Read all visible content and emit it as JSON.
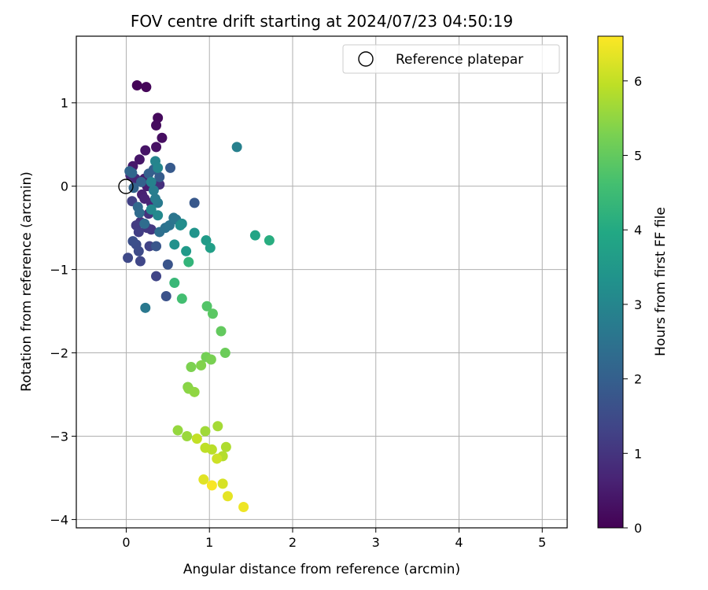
{
  "chart_data": {
    "type": "scatter",
    "title": "FOV centre drift starting at 2024/07/23 04:50:19",
    "xlabel": "Angular distance from reference (arcmin)",
    "ylabel": "Rotation from reference (arcmin)",
    "xlim": [
      -0.6,
      5.3
    ],
    "ylim": [
      -4.1,
      1.8
    ],
    "xticks": [
      0,
      1,
      2,
      3,
      4,
      5
    ],
    "yticks": [
      -4,
      -3,
      -2,
      -1,
      0,
      1
    ],
    "grid": true,
    "legend": {
      "placement": "top-right",
      "entries": [
        "Reference platepar"
      ]
    },
    "reference": {
      "x": 0,
      "y": 0,
      "label": "Reference platepar"
    },
    "colorbar": {
      "label": "Hours from first FF file",
      "range": [
        0,
        6.6
      ],
      "ticks": [
        0,
        1,
        2,
        3,
        4,
        5,
        6
      ],
      "colormap": "viridis"
    },
    "points": [
      {
        "x": 0.13,
        "y": 1.21,
        "c": 0.05
      },
      {
        "x": 0.24,
        "y": 1.19,
        "c": 0.1
      },
      {
        "x": 0.38,
        "y": 0.82,
        "c": 0.15
      },
      {
        "x": 0.36,
        "y": 0.73,
        "c": 0.2
      },
      {
        "x": 0.43,
        "y": 0.58,
        "c": 0.25
      },
      {
        "x": 0.36,
        "y": 0.47,
        "c": 0.3
      },
      {
        "x": 0.23,
        "y": 0.43,
        "c": 0.35
      },
      {
        "x": 0.16,
        "y": 0.32,
        "c": 0.4
      },
      {
        "x": 0.08,
        "y": 0.24,
        "c": 0.45
      },
      {
        "x": 0.22,
        "y": 0.09,
        "c": 0.5
      },
      {
        "x": 0.25,
        "y": 0.0,
        "c": 0.55
      },
      {
        "x": 0.19,
        "y": -0.1,
        "c": 0.6
      },
      {
        "x": 0.22,
        "y": -0.15,
        "c": 0.65
      },
      {
        "x": 0.3,
        "y": -0.2,
        "c": 0.7
      },
      {
        "x": 0.11,
        "y": 0.09,
        "c": 0.75
      },
      {
        "x": 0.05,
        "y": 0.13,
        "c": 0.8
      },
      {
        "x": 0.35,
        "y": 0.0,
        "c": 0.85
      },
      {
        "x": 0.4,
        "y": 0.02,
        "c": 0.9
      },
      {
        "x": 0.27,
        "y": -0.33,
        "c": 0.95
      },
      {
        "x": 0.17,
        "y": -0.43,
        "c": 1.0
      },
      {
        "x": 0.3,
        "y": -0.52,
        "c": 1.05
      },
      {
        "x": 0.25,
        "y": -0.5,
        "c": 1.1
      },
      {
        "x": 0.12,
        "y": -0.47,
        "c": 1.15
      },
      {
        "x": 0.15,
        "y": -0.55,
        "c": 1.2
      },
      {
        "x": 0.07,
        "y": -0.18,
        "c": 1.25
      },
      {
        "x": 0.28,
        "y": -0.72,
        "c": 1.3
      },
      {
        "x": 0.36,
        "y": -1.08,
        "c": 1.35
      },
      {
        "x": 0.17,
        "y": -0.9,
        "c": 1.4
      },
      {
        "x": 0.02,
        "y": -0.86,
        "c": 1.45
      },
      {
        "x": 0.15,
        "y": -0.78,
        "c": 1.5
      },
      {
        "x": 0.12,
        "y": -0.7,
        "c": 1.55
      },
      {
        "x": 0.08,
        "y": -0.66,
        "c": 1.6
      },
      {
        "x": 0.48,
        "y": -1.32,
        "c": 1.65
      },
      {
        "x": 0.5,
        "y": -0.94,
        "c": 1.7
      },
      {
        "x": 0.36,
        "y": -0.72,
        "c": 1.75
      },
      {
        "x": 0.82,
        "y": -0.2,
        "c": 1.8
      },
      {
        "x": 0.53,
        "y": 0.22,
        "c": 1.85
      },
      {
        "x": 0.4,
        "y": 0.11,
        "c": 1.9
      },
      {
        "x": 0.33,
        "y": 0.2,
        "c": 1.95
      },
      {
        "x": 0.27,
        "y": 0.15,
        "c": 2.0
      },
      {
        "x": 0.18,
        "y": 0.05,
        "c": 2.05
      },
      {
        "x": 0.09,
        "y": -0.02,
        "c": 2.1
      },
      {
        "x": 0.04,
        "y": 0.18,
        "c": 2.15
      },
      {
        "x": 0.07,
        "y": 0.16,
        "c": 2.2
      },
      {
        "x": 0.14,
        "y": -0.25,
        "c": 2.25
      },
      {
        "x": 0.16,
        "y": -0.32,
        "c": 2.3
      },
      {
        "x": 0.22,
        "y": -0.45,
        "c": 2.35
      },
      {
        "x": 0.4,
        "y": -0.55,
        "c": 2.4
      },
      {
        "x": 0.47,
        "y": -0.5,
        "c": 2.45
      },
      {
        "x": 0.52,
        "y": -0.47,
        "c": 2.5
      },
      {
        "x": 0.57,
        "y": -0.38,
        "c": 2.55
      },
      {
        "x": 0.6,
        "y": -0.4,
        "c": 2.6
      },
      {
        "x": 0.23,
        "y": -1.46,
        "c": 2.65
      },
      {
        "x": 0.38,
        "y": -0.2,
        "c": 2.7
      },
      {
        "x": 0.35,
        "y": -0.15,
        "c": 2.75
      },
      {
        "x": 0.33,
        "y": -0.05,
        "c": 2.8
      },
      {
        "x": 1.33,
        "y": 0.47,
        "c": 2.85
      },
      {
        "x": 0.3,
        "y": 0.05,
        "c": 2.9
      },
      {
        "x": 0.35,
        "y": 0.3,
        "c": 2.95
      },
      {
        "x": 0.38,
        "y": 0.22,
        "c": 3.0
      },
      {
        "x": 0.3,
        "y": -0.28,
        "c": 3.05
      },
      {
        "x": 0.38,
        "y": -0.35,
        "c": 3.1
      },
      {
        "x": 0.67,
        "y": -0.45,
        "c": 3.15
      },
      {
        "x": 0.65,
        "y": -0.47,
        "c": 3.2
      },
      {
        "x": 0.58,
        "y": -0.7,
        "c": 3.3
      },
      {
        "x": 0.82,
        "y": -0.56,
        "c": 3.4
      },
      {
        "x": 0.72,
        "y": -0.78,
        "c": 3.55
      },
      {
        "x": 0.96,
        "y": -0.65,
        "c": 3.6
      },
      {
        "x": 1.01,
        "y": -0.74,
        "c": 3.7
      },
      {
        "x": 1.55,
        "y": -0.59,
        "c": 3.85
      },
      {
        "x": 1.72,
        "y": -0.65,
        "c": 4.1
      },
      {
        "x": 0.75,
        "y": -0.91,
        "c": 4.3
      },
      {
        "x": 0.58,
        "y": -1.16,
        "c": 4.4
      },
      {
        "x": 0.67,
        "y": -1.35,
        "c": 4.6
      },
      {
        "x": 0.97,
        "y": -1.44,
        "c": 4.8
      },
      {
        "x": 1.04,
        "y": -1.53,
        "c": 4.9
      },
      {
        "x": 1.14,
        "y": -1.74,
        "c": 5.0
      },
      {
        "x": 1.19,
        "y": -2.0,
        "c": 5.1
      },
      {
        "x": 0.96,
        "y": -2.05,
        "c": 5.2
      },
      {
        "x": 1.02,
        "y": -2.08,
        "c": 5.25
      },
      {
        "x": 0.78,
        "y": -2.17,
        "c": 5.3
      },
      {
        "x": 0.9,
        "y": -2.15,
        "c": 5.35
      },
      {
        "x": 0.74,
        "y": -2.41,
        "c": 5.4
      },
      {
        "x": 0.75,
        "y": -2.43,
        "c": 5.45
      },
      {
        "x": 0.82,
        "y": -2.47,
        "c": 5.5
      },
      {
        "x": 0.62,
        "y": -2.93,
        "c": 5.55
      },
      {
        "x": 0.73,
        "y": -3.0,
        "c": 5.6
      },
      {
        "x": 0.95,
        "y": -2.94,
        "c": 5.65
      },
      {
        "x": 1.1,
        "y": -2.88,
        "c": 5.7
      },
      {
        "x": 1.2,
        "y": -3.13,
        "c": 5.8
      },
      {
        "x": 1.16,
        "y": -3.24,
        "c": 5.85
      },
      {
        "x": 1.03,
        "y": -3.16,
        "c": 5.9
      },
      {
        "x": 0.95,
        "y": -3.14,
        "c": 5.95
      },
      {
        "x": 0.85,
        "y": -3.03,
        "c": 6.0
      },
      {
        "x": 1.09,
        "y": -3.27,
        "c": 6.1
      },
      {
        "x": 1.16,
        "y": -3.57,
        "c": 6.2
      },
      {
        "x": 0.93,
        "y": -3.52,
        "c": 6.3
      },
      {
        "x": 1.22,
        "y": -3.72,
        "c": 6.35
      },
      {
        "x": 1.41,
        "y": -3.85,
        "c": 6.45
      },
      {
        "x": 1.03,
        "y": -3.59,
        "c": 6.55
      }
    ]
  }
}
